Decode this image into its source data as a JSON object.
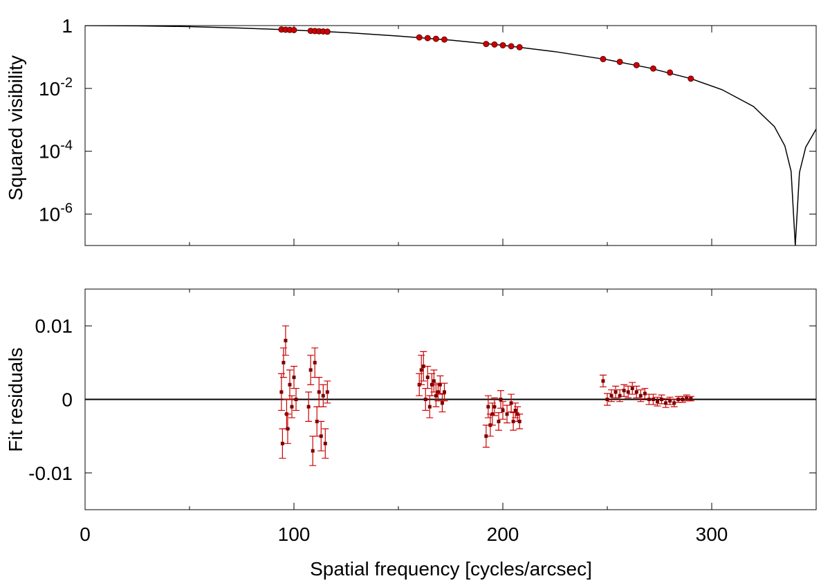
{
  "chart_data": [
    {
      "type": "line",
      "ylabel": "Squared visibility",
      "log_y": true,
      "xlim": [
        0,
        350
      ],
      "xticks": [
        0,
        100,
        200,
        300
      ],
      "xminor_ticks": [
        50,
        150,
        250,
        350
      ],
      "show_x_tick_labels": false,
      "ylim": [
        1e-07,
        1
      ],
      "yticks": [
        1,
        {
          "value": 0.01,
          "label": "10",
          "exponent": "-2"
        },
        {
          "value": 0.0001,
          "label": "10",
          "exponent": "-4"
        },
        {
          "value": 1e-06,
          "label": "10",
          "exponent": "-6"
        }
      ],
      "series": [
        {
          "style": "line",
          "color": "#000000",
          "x": [
            0,
            25,
            50,
            75,
            100,
            125,
            150,
            175,
            200,
            225,
            250,
            270,
            290,
            305,
            320,
            330,
            335,
            338,
            340,
            342,
            345,
            350
          ],
          "values": [
            1,
            0.98,
            0.929,
            0.834,
            0.72,
            0.597,
            0.466,
            0.344,
            0.236,
            0.148,
            0.0821,
            0.045,
            0.0205,
            0.00908,
            0.00266,
            0.00061,
            0.000149,
            2.3e-05,
            1e-07,
            2.1e-05,
            0.000135,
            0.00051
          ]
        },
        {
          "style": "points",
          "color": "#cc0000",
          "x": [
            94,
            96,
            98,
            100,
            108,
            110,
            112,
            114,
            116,
            160,
            164,
            168,
            172,
            192,
            196,
            200,
            204,
            208,
            248,
            256,
            264,
            272,
            280,
            290
          ],
          "values": [
            0.75,
            0.74,
            0.73,
            0.72,
            0.68,
            0.67,
            0.66,
            0.65,
            0.64,
            0.42,
            0.4,
            0.38,
            0.36,
            0.26,
            0.25,
            0.236,
            0.22,
            0.205,
            0.086,
            0.07,
            0.055,
            0.043,
            0.032,
            0.0205
          ]
        }
      ]
    },
    {
      "type": "errorbar",
      "xlabel": "Spatial frequency [cycles/arcsec]",
      "ylabel": "Fit residuals",
      "xlim": [
        0,
        350
      ],
      "xticks": [
        0,
        100,
        200,
        300
      ],
      "xminor_ticks": [
        50,
        150,
        250,
        350
      ],
      "show_x_tick_labels": true,
      "ylim": [
        -0.015,
        0.015
      ],
      "yticks": [
        -0.01,
        0,
        0.01
      ],
      "zero_line": true,
      "color": "#cc0000",
      "marker_color": "#7a0000",
      "x": [
        94,
        94.5,
        95,
        96,
        96.5,
        97,
        98,
        99,
        100,
        101,
        107,
        108,
        109,
        110,
        111,
        112,
        113,
        114,
        115,
        116,
        160,
        161,
        162,
        163,
        164,
        165,
        166,
        167,
        168,
        169,
        170,
        171,
        172,
        192,
        193,
        194,
        195,
        196,
        198,
        199,
        200,
        202,
        204,
        205,
        206,
        207,
        208,
        248,
        250,
        252,
        254,
        256,
        258,
        260,
        262,
        264,
        266,
        268,
        270,
        272,
        274,
        276,
        278,
        280,
        282,
        284,
        286,
        288,
        290
      ],
      "values": [
        0.001,
        -0.006,
        0.005,
        0.008,
        -0.002,
        -0.004,
        0.002,
        -0.001,
        0.003,
        0,
        -0.001,
        0.004,
        -0.007,
        0.005,
        -0.003,
        0.001,
        -0.005,
        0.0005,
        -0.006,
        0.001,
        0.002,
        0.004,
        0.0045,
        0,
        0.003,
        -0.001,
        0.002,
        0.0025,
        0.0005,
        0.001,
        0.002,
        -0.0005,
        0.001,
        -0.005,
        -0.001,
        -0.0035,
        -0.002,
        -0.001,
        -0.003,
        0,
        -0.0015,
        -0.002,
        -0.0005,
        -0.003,
        -0.0015,
        -0.002,
        -0.003,
        0.0025,
        0,
        0.0005,
        0.001,
        0.0005,
        0.0012,
        0.001,
        0.0015,
        0.001,
        0.0005,
        0.0008,
        0,
        0,
        -0.0003,
        0,
        -0.0005,
        -0.0002,
        -0.0005,
        0,
        0,
        0.0002,
        0.0001
      ],
      "errors": [
        0.0025,
        0.002,
        0.002,
        0.002,
        0.002,
        0.002,
        0.002,
        0.0015,
        0.0015,
        0.0015,
        0.002,
        0.002,
        0.002,
        0.002,
        0.002,
        0.002,
        0.002,
        0.0015,
        0.002,
        0.0015,
        0.0015,
        0.002,
        0.002,
        0.0015,
        0.0015,
        0.0015,
        0.0015,
        0.0015,
        0.0015,
        0.0012,
        0.0012,
        0.0012,
        0.0012,
        0.0015,
        0.0015,
        0.0015,
        0.0015,
        0.0012,
        0.0012,
        0.0012,
        0.0012,
        0.0012,
        0.0012,
        0.0012,
        0.001,
        0.001,
        0.001,
        0.0008,
        0.0008,
        0.0008,
        0.0008,
        0.0008,
        0.0008,
        0.0008,
        0.0008,
        0.0008,
        0.0008,
        0.0007,
        0.0007,
        0.0007,
        0.0006,
        0.0006,
        0.0006,
        0.0005,
        0.0005,
        0.0004,
        0.0004,
        0.0004,
        0.0003
      ]
    }
  ]
}
